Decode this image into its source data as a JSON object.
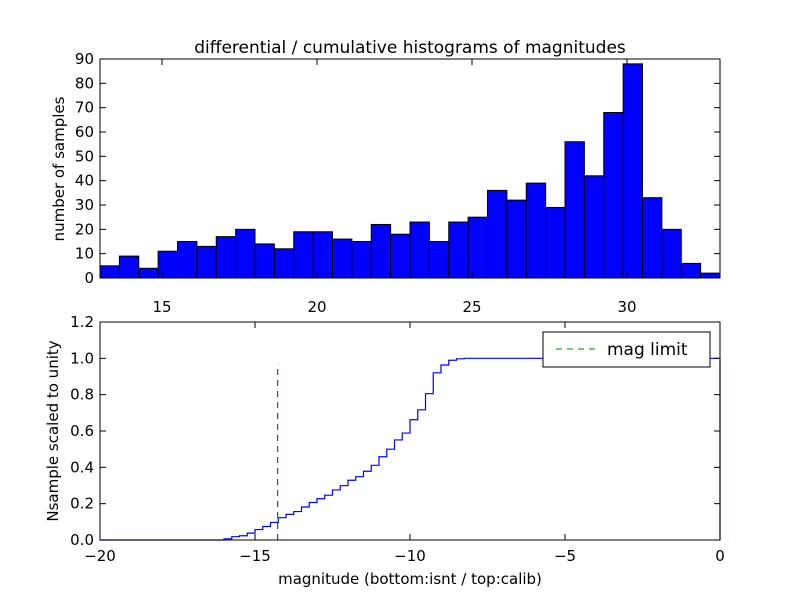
{
  "chart_data": [
    {
      "type": "bar",
      "title": "differential / cumulative histograms of magnitudes",
      "xlabel": "",
      "ylabel": "number of samples",
      "xlim": [
        13,
        33
      ],
      "ylim": [
        0,
        90
      ],
      "bin_start": 13,
      "bin_width": 0.625,
      "values": [
        5,
        9,
        4,
        11,
        15,
        13,
        17,
        20,
        14,
        12,
        19,
        19,
        16,
        15,
        22,
        18,
        23,
        15,
        23,
        25,
        36,
        32,
        39,
        29,
        56,
        42,
        68,
        88,
        33,
        20,
        6,
        2
      ],
      "xticks": [
        "15",
        "20",
        "25",
        "30"
      ],
      "xtick_values": [
        15,
        20,
        25,
        30
      ],
      "yticks": [
        "0",
        "10",
        "20",
        "30",
        "40",
        "50",
        "60",
        "70",
        "80",
        "90"
      ],
      "color": "#0000ff"
    },
    {
      "type": "line",
      "title": "",
      "xlabel": "magnitude (bottom:isnt / top:calib)",
      "ylabel": "Nsample scaled to unity",
      "xlim": [
        -20,
        0
      ],
      "ylim": [
        0,
        1.2
      ],
      "step_start": -16,
      "step_width": 0.25,
      "series": [
        {
          "name": "cumulative",
          "color": "#0000ff"
        }
      ],
      "mag_limit": {
        "name": "mag limit",
        "x": -14.27,
        "y": [
          0,
          0.97
        ],
        "color": "#008000"
      },
      "xticks": [
        "−20",
        "−15",
        "−10",
        "−5",
        "0"
      ],
      "xtick_values": [
        -20,
        -15,
        -10,
        -5,
        0
      ],
      "yticks": [
        "0.0",
        "0.2",
        "0.4",
        "0.6",
        "0.8",
        "1.0",
        "1.2"
      ],
      "ytick_values": [
        0,
        0.2,
        0.4,
        0.6,
        0.8,
        1.0,
        1.2
      ],
      "legend": {
        "label": "mag limit",
        "placement": "top-right"
      }
    }
  ]
}
